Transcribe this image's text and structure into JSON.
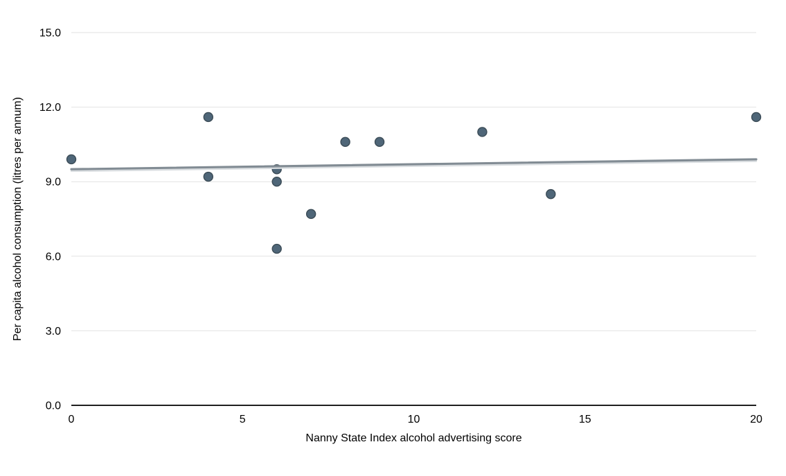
{
  "chart_data": {
    "type": "scatter",
    "title": "",
    "xlabel": "Nanny State Index alcohol advertising score",
    "ylabel": "Per capita alcohol consumption (litres per annum)",
    "xlim": [
      0,
      20
    ],
    "ylim": [
      0,
      15
    ],
    "x_ticks": [
      0,
      5,
      10,
      15,
      20
    ],
    "x_tick_labels": [
      "0",
      "5",
      "10",
      "15",
      "20"
    ],
    "y_ticks": [
      0,
      3,
      6,
      9,
      12,
      15
    ],
    "y_tick_labels": [
      "0.0",
      "3.0",
      "6.0",
      "9.0",
      "12.0",
      "15.0"
    ],
    "grid": true,
    "legend": "none",
    "points": [
      {
        "x": 0,
        "y": 9.9
      },
      {
        "x": 4,
        "y": 11.6
      },
      {
        "x": 4,
        "y": 9.2
      },
      {
        "x": 6,
        "y": 9.5
      },
      {
        "x": 6,
        "y": 9.0
      },
      {
        "x": 6,
        "y": 6.3
      },
      {
        "x": 7,
        "y": 7.7
      },
      {
        "x": 8,
        "y": 10.6
      },
      {
        "x": 9,
        "y": 10.6
      },
      {
        "x": 12,
        "y": 11.0
      },
      {
        "x": 14,
        "y": 8.5
      },
      {
        "x": 20,
        "y": 11.6
      }
    ],
    "trendline": {
      "x1": 0,
      "y1": 9.5,
      "x2": 20,
      "y2": 9.9
    },
    "colors": {
      "point_fill": "#4f6678",
      "point_stroke": "#3b4b56",
      "trend_line": "#828c94",
      "trend_shadow": "#d9dde0",
      "gridline": "#e2e2e2",
      "axis_line": "#1f1f1f",
      "text": "#000000",
      "background": "#ffffff"
    }
  }
}
